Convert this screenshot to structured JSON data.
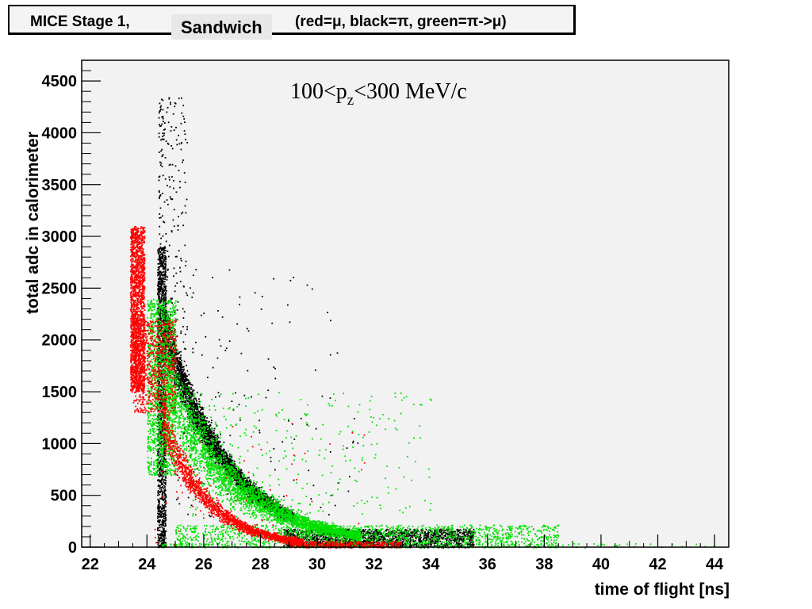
{
  "title": {
    "left": "MICE Stage 1,",
    "middle": "Sandwich",
    "right": "(red=μ, black=π, green=π->μ)"
  },
  "chart_data": {
    "type": "scatter",
    "title": "MICE Stage 1, Sandwich (red=μ, black=π, green=π->μ)",
    "xlabel": "time of flight [ns]",
    "ylabel": "total adc in calorimeter",
    "xlim": [
      21.7,
      44.5
    ],
    "ylim": [
      0,
      4700
    ],
    "xticks": [
      22,
      24,
      26,
      28,
      30,
      32,
      34,
      36,
      38,
      40,
      42,
      44
    ],
    "yticks": [
      0,
      500,
      1000,
      1500,
      2000,
      2500,
      3000,
      3500,
      4000,
      4500
    ],
    "grid": false,
    "annotation": {
      "main": "100<p",
      "sub": "z",
      "rest": "<300 MeV/c"
    },
    "series": [
      {
        "name": "μ",
        "color": "#ff0000",
        "layer": 2,
        "clusters": [
          {
            "x": [
              23.4,
              23.9
            ],
            "y": [
              1500,
              3100
            ],
            "n": 1800,
            "shape": "band"
          },
          {
            "x": [
              23.5,
              25.0
            ],
            "y": [
              1300,
              2200
            ],
            "n": 700,
            "shape": "band"
          },
          {
            "curve": "decay",
            "x": [
              24.5,
              29.5
            ],
            "y0": 1250,
            "tau": 1.6,
            "spread": 0.2,
            "n": 1800
          },
          {
            "x": [
              29.0,
              33.0
            ],
            "y": [
              0,
              60
            ],
            "n": 400,
            "shape": "band"
          },
          {
            "x": [
              24.2,
              32.0
            ],
            "y": [
              0,
              1200
            ],
            "n": 60,
            "shape": "scatter"
          }
        ]
      },
      {
        "name": "π",
        "color": "#000000",
        "layer": 0,
        "clusters": [
          {
            "x": [
              24.35,
              24.65
            ],
            "y": [
              0,
              2900
            ],
            "n": 1500,
            "shape": "band"
          },
          {
            "x": [
              24.4,
              25.4
            ],
            "y": [
              2000,
              4350
            ],
            "n": 250,
            "shape": "scatter"
          },
          {
            "curve": "decay",
            "x": [
              24.6,
              29.2
            ],
            "y0": 2100,
            "tau": 2.3,
            "spread": 0.13,
            "n": 3800
          },
          {
            "x": [
              28.8,
              35.5
            ],
            "y": [
              0,
              180
            ],
            "n": 1800,
            "shape": "band"
          },
          {
            "x": [
              25.0,
              31.5
            ],
            "y": [
              300,
              2700
            ],
            "n": 160,
            "shape": "scatter"
          }
        ]
      },
      {
        "name": "π->μ",
        "color": "#00e000",
        "layer": 1,
        "clusters": [
          {
            "x": [
              24.0,
              25.0
            ],
            "y": [
              700,
              2400
            ],
            "n": 1300,
            "shape": "band"
          },
          {
            "curve": "decay",
            "x": [
              24.6,
              31.5
            ],
            "y0": 1600,
            "tau": 2.6,
            "spread": 0.3,
            "n": 3200
          },
          {
            "x": [
              25.0,
              38.5
            ],
            "y": [
              0,
              220
            ],
            "n": 1500,
            "shape": "band"
          },
          {
            "x": [
              25.5,
              34.0
            ],
            "y": [
              300,
              1500
            ],
            "n": 350,
            "shape": "scatter"
          },
          {
            "x": [
              24.5,
              44.0
            ],
            "y": [
              0,
              40
            ],
            "n": 120,
            "shape": "scatter"
          }
        ]
      }
    ]
  }
}
